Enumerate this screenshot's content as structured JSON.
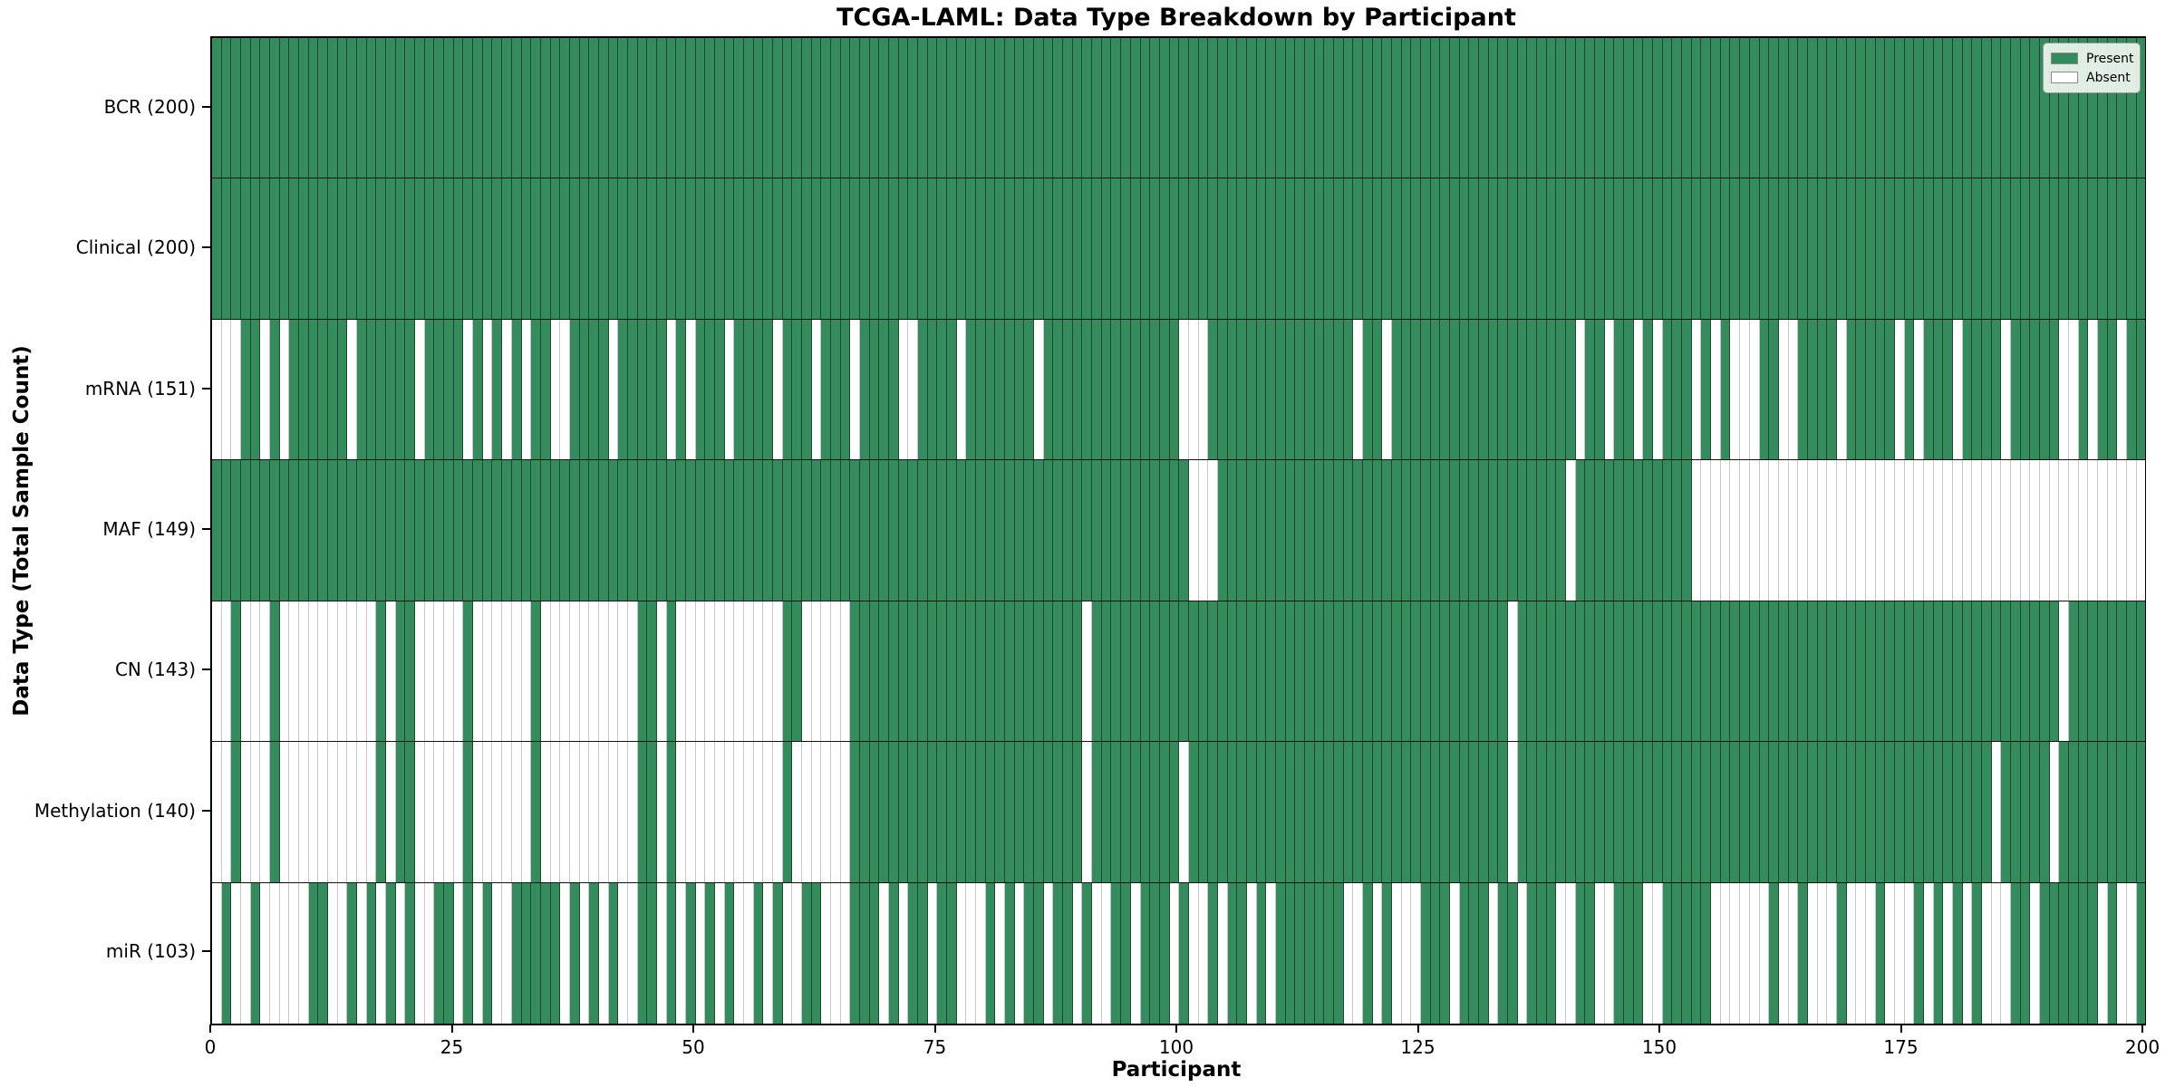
{
  "title": "TCGA-LAML: Data Type Breakdown by Participant",
  "legend": {
    "present_label": "Present",
    "absent_label": "Absent"
  },
  "colors": {
    "present": "#348B5B",
    "absent": "#ffffff",
    "grid_line": "rgba(0,0,0,0.48)",
    "row_separator": "#111111",
    "plot_border": "#000000"
  },
  "chart_data": {
    "type": "heatmap",
    "title": "TCGA-LAML: Data Type Breakdown by Participant",
    "xlabel": "Participant",
    "ylabel": "Data Type (Total Sample Count)",
    "x_ticks": [
      0,
      25,
      50,
      75,
      100,
      125,
      150,
      175,
      200
    ],
    "x_range": [
      0,
      200
    ],
    "n_participants": 200,
    "legend_position": "upper right",
    "cell_values": "1=Present(green), 0=Absent(white); absent lists give participant indices with value 0",
    "rows": [
      {
        "label": "BCR (200)",
        "name": "BCR",
        "present_count": 200,
        "absent": []
      },
      {
        "label": "Clinical (200)",
        "name": "Clinical",
        "present_count": 200,
        "absent": []
      },
      {
        "label": "mRNA (151)",
        "name": "mRNA",
        "present_count": 151,
        "absent": [
          0,
          1,
          2,
          5,
          7,
          14,
          21,
          26,
          28,
          30,
          32,
          35,
          36,
          41,
          47,
          49,
          53,
          58,
          62,
          66,
          71,
          72,
          77,
          85,
          100,
          101,
          102,
          118,
          121,
          141,
          144,
          147,
          149,
          153,
          155,
          157,
          158,
          159,
          162,
          163,
          168,
          174,
          176,
          180,
          185,
          191,
          192,
          194,
          197
        ]
      },
      {
        "label": "MAF (149)",
        "name": "MAF",
        "present_count": 149,
        "absent": [
          101,
          102,
          103,
          140,
          153,
          154,
          155,
          156,
          157,
          158,
          159,
          160,
          161,
          162,
          163,
          164,
          165,
          166,
          167,
          168,
          169,
          170,
          171,
          172,
          173,
          174,
          175,
          176,
          177,
          178,
          179,
          180,
          181,
          182,
          183,
          184,
          185,
          186,
          187,
          188,
          189,
          190,
          191,
          192,
          193,
          194,
          195,
          196,
          197,
          198,
          199
        ]
      },
      {
        "label": "CN (143)",
        "name": "CN",
        "present_count": 143,
        "absent": [
          0,
          1,
          3,
          4,
          5,
          7,
          8,
          9,
          10,
          11,
          12,
          13,
          14,
          15,
          16,
          18,
          21,
          22,
          23,
          24,
          25,
          27,
          28,
          29,
          30,
          31,
          32,
          34,
          35,
          36,
          37,
          38,
          39,
          40,
          41,
          42,
          43,
          46,
          48,
          49,
          50,
          51,
          52,
          53,
          54,
          55,
          56,
          57,
          58,
          61,
          62,
          63,
          64,
          65,
          90,
          134,
          191
        ]
      },
      {
        "label": "Methylation (140)",
        "name": "Methylation",
        "present_count": 140,
        "absent": [
          0,
          1,
          3,
          4,
          5,
          7,
          8,
          9,
          10,
          11,
          12,
          13,
          14,
          15,
          16,
          18,
          21,
          22,
          23,
          24,
          25,
          27,
          28,
          29,
          30,
          31,
          32,
          34,
          35,
          36,
          37,
          38,
          39,
          40,
          41,
          42,
          43,
          46,
          48,
          49,
          50,
          51,
          52,
          53,
          54,
          55,
          56,
          57,
          58,
          60,
          61,
          62,
          63,
          64,
          65,
          90,
          100,
          134,
          184,
          190
        ]
      },
      {
        "label": "miR (103)",
        "name": "miR",
        "present_count": 103,
        "absent": [
          0,
          2,
          3,
          5,
          6,
          7,
          8,
          9,
          12,
          13,
          15,
          17,
          19,
          21,
          22,
          25,
          27,
          29,
          30,
          36,
          38,
          40,
          42,
          43,
          46,
          48,
          50,
          52,
          54,
          55,
          57,
          59,
          60,
          63,
          64,
          65,
          69,
          71,
          74,
          77,
          78,
          79,
          81,
          83,
          86,
          89,
          91,
          92,
          95,
          99,
          101,
          102,
          104,
          107,
          109,
          117,
          118,
          120,
          122,
          123,
          124,
          128,
          132,
          135,
          139,
          140,
          143,
          144,
          148,
          149,
          155,
          156,
          157,
          158,
          159,
          160,
          162,
          163,
          165,
          166,
          167,
          169,
          170,
          171,
          173,
          174,
          175,
          177,
          179,
          181,
          183,
          184,
          185,
          188,
          195,
          197,
          198
        ]
      }
    ]
  }
}
